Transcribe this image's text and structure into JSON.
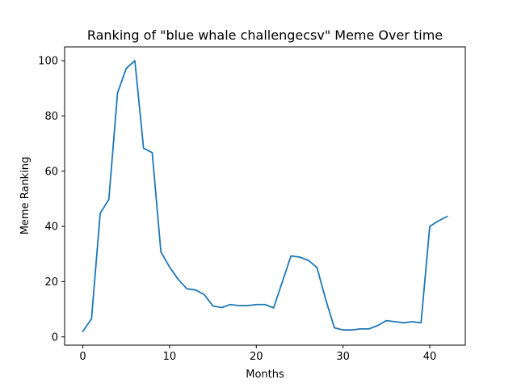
{
  "chart_data": {
    "type": "line",
    "title": "Ranking of \"blue whale challengecsv\" Meme Over time",
    "xlabel": "Months",
    "ylabel": "Meme Ranking",
    "xlim": [
      -2.1,
      44.1
    ],
    "ylim": [
      -3,
      105
    ],
    "xticks": [
      0,
      10,
      20,
      30,
      40
    ],
    "yticks": [
      0,
      20,
      40,
      60,
      80,
      100
    ],
    "grid": false,
    "legend": "none",
    "series": [
      {
        "color": "#1f77b4",
        "x": [
          0,
          1,
          2,
          3,
          4,
          5,
          6,
          7,
          8,
          9,
          10,
          11,
          12,
          13,
          14,
          15,
          16,
          17,
          18,
          19,
          20,
          21,
          22,
          23,
          24,
          25,
          26,
          27,
          28,
          29,
          30,
          31,
          32,
          33,
          34,
          35,
          36,
          37,
          38,
          39,
          40,
          41,
          42
        ],
        "values": [
          2,
          6.5,
          44.7,
          49.8,
          88.3,
          97.2,
          100,
          68.3,
          66.7,
          30.8,
          25.3,
          20.8,
          17.4,
          17,
          15.3,
          11.2,
          10.6,
          11.7,
          11.3,
          11.3,
          11.7,
          11.7,
          10.5,
          19.9,
          29.3,
          28.9,
          27.7,
          25.1,
          13.6,
          3.3,
          2.5,
          2.5,
          2.9,
          2.9,
          4.1,
          5.9,
          5.5,
          5.1,
          5.5,
          5.1,
          40,
          42,
          43.6
        ]
      }
    ]
  }
}
